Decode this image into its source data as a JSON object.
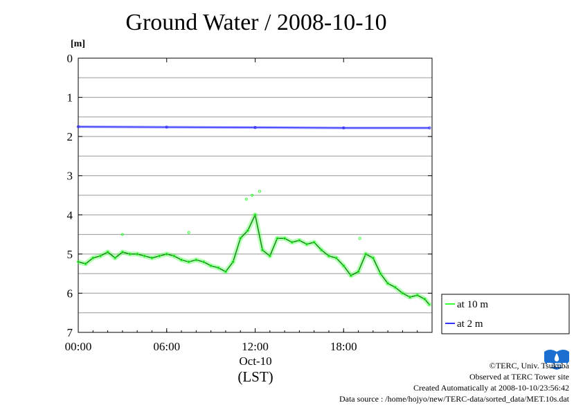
{
  "chart_data": {
    "type": "line",
    "title": "Ground Water / 2008-10-10",
    "ylabel": "[m]",
    "ylim": [
      0,
      7
    ],
    "y_inverted": true,
    "yticks": [
      "0",
      "1",
      "2",
      "3",
      "4",
      "5",
      "6",
      "7"
    ],
    "xlim": [
      "00:00",
      "24:00"
    ],
    "xticks": [
      "00:00",
      "06:00",
      "12:00",
      "18:00"
    ],
    "x_date_label": "Oct-10",
    "x_axis_label": "(LST)",
    "grid": true,
    "legend_position": "right",
    "series": [
      {
        "name": "at 10 m",
        "color": "#33ff33",
        "x": [
          "00:00",
          "00:30",
          "01:00",
          "01:30",
          "02:00",
          "02:30",
          "03:00",
          "03:30",
          "04:00",
          "04:30",
          "05:00",
          "05:30",
          "06:00",
          "06:30",
          "07:00",
          "07:30",
          "08:00",
          "08:30",
          "09:00",
          "09:30",
          "10:00",
          "10:30",
          "11:00",
          "11:30",
          "12:00",
          "12:30",
          "13:00",
          "13:30",
          "14:00",
          "14:30",
          "15:00",
          "15:30",
          "16:00",
          "16:30",
          "17:00",
          "17:30",
          "18:00",
          "18:30",
          "19:00",
          "19:30",
          "20:00",
          "20:30",
          "21:00",
          "21:30",
          "22:00",
          "22:30",
          "23:00",
          "23:30",
          "23:50"
        ],
        "y": [
          5.2,
          5.25,
          5.1,
          5.05,
          4.95,
          5.1,
          4.95,
          5.0,
          5.0,
          5.05,
          5.1,
          5.05,
          5.0,
          5.05,
          5.15,
          5.2,
          5.15,
          5.2,
          5.3,
          5.35,
          5.45,
          5.2,
          4.6,
          4.4,
          4.0,
          4.9,
          5.05,
          4.6,
          4.6,
          4.7,
          4.65,
          4.75,
          4.7,
          4.9,
          5.05,
          5.1,
          5.3,
          5.55,
          5.45,
          5.0,
          5.1,
          5.5,
          5.75,
          5.85,
          6.0,
          6.1,
          6.05,
          6.15,
          6.3
        ],
        "scatter_outliers": [
          [
            11.8,
            3.5
          ],
          [
            12.3,
            3.4
          ],
          [
            11.4,
            3.6
          ],
          [
            3.0,
            4.5
          ],
          [
            7.5,
            4.45
          ],
          [
            19.1,
            4.6
          ]
        ]
      },
      {
        "name": "at 2 m",
        "color": "#3333ff",
        "x": [
          "00:00",
          "06:00",
          "12:00",
          "18:00",
          "23:50"
        ],
        "y": [
          1.75,
          1.76,
          1.77,
          1.78,
          1.78
        ]
      }
    ]
  },
  "credits": {
    "line1": "©TERC, Univ. Tsukuba",
    "line2": "Observed at TERC Tower site",
    "line3": "Created Automatically at 2008-10-10/23:56:42",
    "line4": "Data source : /home/hojyo/new/TERC-data/sorted_data/MET.10s.dat"
  },
  "logo_icon": "terc-logo-icon"
}
